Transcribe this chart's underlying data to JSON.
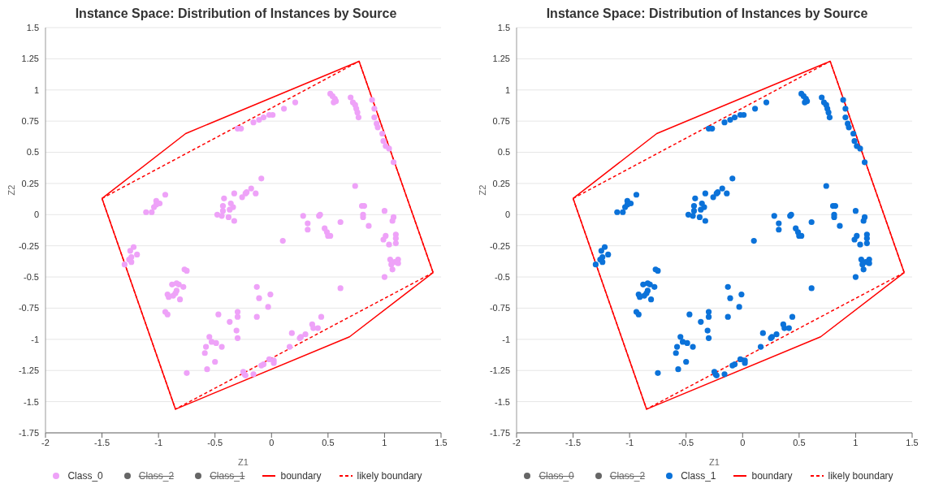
{
  "chart_data": [
    {
      "type": "scatter",
      "title": "Instance Space: Distribution of Instances by Source",
      "xlabel": "Z1",
      "ylabel": "Z2",
      "xlim": [
        -2,
        1.5
      ],
      "xticks": [
        -2,
        -1.5,
        -1,
        -0.5,
        0,
        0.5,
        1,
        1.5
      ],
      "ylim": [
        -1.75,
        1.5
      ],
      "yticks": [
        -1.75,
        -1.5,
        -1.25,
        -1,
        -0.75,
        -0.5,
        -0.25,
        0,
        0.25,
        0.5,
        0.75,
        1,
        1.25,
        1.5
      ],
      "grid": "y",
      "legend": "bottom",
      "marker": "circle",
      "series": [
        {
          "name": "Class_0",
          "color": "#eea2f8",
          "x": [
            -1.11,
            -1.06,
            -1.04,
            -1.02,
            -0.99,
            -0.94,
            -1.02,
            -0.42,
            -0.33,
            -0.26,
            -0.22,
            -0.36,
            -0.34,
            -0.43,
            -0.43,
            -0.37,
            -0.48,
            -0.44,
            -0.38,
            -0.33,
            -0.09,
            -0.18,
            -0.14,
            -0.23,
            -0.16,
            -0.11,
            -0.07,
            -0.02,
            0.01,
            0.11,
            0.21,
            -0.27,
            -0.3,
            0.52,
            0.54,
            0.56,
            0.57,
            0.55,
            0.7,
            0.72,
            0.74,
            0.75,
            0.76,
            0.77,
            0.89,
            0.91,
            0.91,
            0.93,
            0.94,
            0.98,
            0.99,
            1.01,
            1.04,
            1.08,
            0.74,
            0.8,
            0.82,
            0.81,
            0.81,
            0.86,
            0.61,
            0.28,
            0.32,
            0.32,
            0.42,
            0.43,
            0.47,
            0.49,
            0.5,
            0.52,
            0.1,
            1.0,
            1.08,
            1.07,
            1.1,
            1.1,
            1.01,
            0.99,
            1.04,
            1.1,
            1.05,
            1.09,
            1.12,
            1.06,
            1.07,
            1.12,
            1.0,
            -0.13,
            -0.11,
            -0.01,
            -0.03,
            -0.13,
            0.61,
            0.44,
            0.36,
            0.37,
            0.41,
            0.18,
            0.3,
            0.26,
            0.25,
            0.16,
            -0.02,
            0.02,
            0.02,
            -0.07,
            -0.09,
            -0.16,
            -0.24,
            -1.22,
            -1.25,
            -1.19,
            -1.24,
            -1.26,
            -1.24,
            -1.3,
            -0.77,
            -0.75,
            -0.88,
            -0.84,
            -0.82,
            -0.78,
            -0.84,
            -0.85,
            -0.92,
            -0.91,
            -0.87,
            -0.81,
            -0.94,
            -0.92,
            -0.47,
            -0.3,
            -0.3,
            -0.37,
            -0.31,
            -0.3,
            -0.55,
            -0.58,
            -0.53,
            -0.49,
            -0.44,
            -0.59,
            -0.5,
            -0.57,
            -0.75,
            -0.25,
            -0.23
          ],
          "values": [
            0.02,
            0.02,
            0.06,
            0.11,
            0.09,
            0.16,
            0.08,
            0.13,
            0.17,
            0.14,
            0.18,
            0.09,
            0.06,
            0.07,
            0.03,
            0.04,
            0.0,
            -0.01,
            -0.02,
            -0.05,
            0.29,
            0.21,
            0.17,
            0.17,
            0.74,
            0.76,
            0.78,
            0.8,
            0.8,
            0.85,
            0.9,
            0.69,
            0.69,
            0.97,
            0.95,
            0.93,
            0.91,
            0.9,
            0.94,
            0.9,
            0.88,
            0.85,
            0.82,
            0.78,
            0.92,
            0.85,
            0.78,
            0.73,
            0.7,
            0.65,
            0.59,
            0.55,
            0.53,
            0.42,
            0.23,
            0.07,
            0.07,
            0.0,
            -0.02,
            -0.09,
            -0.06,
            -0.01,
            -0.07,
            -0.12,
            -0.01,
            0.0,
            -0.11,
            -0.14,
            -0.17,
            -0.17,
            -0.21,
            0.03,
            -0.02,
            -0.05,
            -0.16,
            -0.19,
            -0.17,
            -0.2,
            -0.24,
            -0.23,
            -0.36,
            -0.38,
            -0.36,
            -0.4,
            -0.44,
            -0.39,
            -0.5,
            -0.58,
            -0.67,
            -0.64,
            -0.74,
            -0.82,
            -0.59,
            -0.82,
            -0.88,
            -0.91,
            -0.91,
            -0.95,
            -0.96,
            -0.98,
            -0.99,
            -1.06,
            -1.16,
            -1.17,
            -1.19,
            -1.2,
            -1.21,
            -1.28,
            -1.28,
            -0.26,
            -0.29,
            -0.32,
            -0.34,
            -0.36,
            -0.38,
            -0.4,
            -0.44,
            -0.45,
            -0.56,
            -0.55,
            -0.56,
            -0.58,
            -0.61,
            -0.63,
            -0.64,
            -0.66,
            -0.65,
            -0.68,
            -0.78,
            -0.8,
            -0.8,
            -0.78,
            -0.82,
            -0.86,
            -0.93,
            -0.99,
            -0.98,
            -1.06,
            -1.02,
            -1.03,
            -1.06,
            -1.11,
            -1.18,
            -1.24,
            -1.27,
            -1.26,
            -1.29
          ]
        },
        {
          "name": "Class_2",
          "color": "#666666"
        },
        {
          "name": "Class_1",
          "color": "#666666"
        },
        {
          "name": "boundary",
          "type": "line",
          "color": "#ff0000",
          "line_style": "solid",
          "marker": "none",
          "x": [
            -1.5,
            -0.76,
            0.775,
            1.43
          ],
          "values": [
            0.13,
            0.65,
            1.23,
            -0.465
          ]
        },
        {
          "type": "line",
          "color": "#ff0000",
          "line_style": "solid",
          "marker": "none",
          "x": [
            -1.5,
            -0.85,
            0.69,
            1.43
          ],
          "values": [
            0.13,
            -1.56,
            -0.98,
            -0.465
          ]
        },
        {
          "name": "likely boundary",
          "type": "line",
          "color": "#ff0000",
          "line_style": "dashed",
          "marker": "none",
          "x": [
            -1.5,
            0.775,
            1.43
          ],
          "values": [
            0.13,
            1.23,
            -0.465
          ]
        },
        {
          "type": "line",
          "color": "#ff0000",
          "line_style": "dashed",
          "marker": "none",
          "x": [
            -1.5,
            -0.85,
            1.43
          ],
          "values": [
            0.13,
            -1.56,
            -0.465
          ]
        }
      ]
    },
    {
      "type": "scatter",
      "title": "Instance Space: Distribution of Instances by Source",
      "xlabel": "Z1",
      "ylabel": "Z2",
      "xlim": [
        -2,
        1.5
      ],
      "xticks": [
        -2,
        -1.5,
        -1,
        -0.5,
        0,
        0.5,
        1,
        1.5
      ],
      "ylim": [
        -1.75,
        1.5
      ],
      "yticks": [
        -1.75,
        -1.5,
        -1.25,
        -1,
        -0.75,
        -0.5,
        -0.25,
        0,
        0.25,
        0.5,
        0.75,
        1,
        1.25,
        1.5
      ],
      "grid": "y",
      "legend": "bottom",
      "marker": "circle",
      "series": [
        {
          "name": "Class_0",
          "color": "#666666"
        },
        {
          "name": "Class_2",
          "color": "#666666"
        },
        {
          "name": "Class_1",
          "color": "#0b72d9",
          "x": [
            -1.11,
            -1.06,
            -1.04,
            -1.02,
            -0.99,
            -0.94,
            -1.02,
            -0.42,
            -0.33,
            -0.26,
            -0.22,
            -0.36,
            -0.34,
            -0.43,
            -0.43,
            -0.37,
            -0.48,
            -0.44,
            -0.38,
            -0.33,
            -0.09,
            -0.18,
            -0.14,
            -0.23,
            -0.16,
            -0.11,
            -0.07,
            -0.02,
            0.01,
            0.11,
            0.21,
            -0.27,
            -0.3,
            0.52,
            0.54,
            0.56,
            0.57,
            0.55,
            0.7,
            0.72,
            0.74,
            0.75,
            0.76,
            0.77,
            0.89,
            0.91,
            0.91,
            0.93,
            0.94,
            0.98,
            0.99,
            1.01,
            1.04,
            1.08,
            0.74,
            0.8,
            0.82,
            0.81,
            0.81,
            0.86,
            0.61,
            0.28,
            0.32,
            0.32,
            0.42,
            0.43,
            0.47,
            0.49,
            0.5,
            0.52,
            0.1,
            1.0,
            1.08,
            1.07,
            1.1,
            1.1,
            1.01,
            0.99,
            1.04,
            1.1,
            1.05,
            1.09,
            1.12,
            1.06,
            1.07,
            1.12,
            1.0,
            -0.13,
            -0.11,
            -0.01,
            -0.03,
            -0.13,
            0.61,
            0.44,
            0.36,
            0.37,
            0.41,
            0.18,
            0.3,
            0.26,
            0.25,
            0.16,
            -0.02,
            0.02,
            0.02,
            -0.07,
            -0.09,
            -0.16,
            -0.24,
            -1.22,
            -1.25,
            -1.19,
            -1.24,
            -1.26,
            -1.24,
            -1.3,
            -0.77,
            -0.75,
            -0.88,
            -0.84,
            -0.82,
            -0.78,
            -0.84,
            -0.85,
            -0.92,
            -0.91,
            -0.87,
            -0.81,
            -0.94,
            -0.92,
            -0.47,
            -0.3,
            -0.3,
            -0.37,
            -0.31,
            -0.3,
            -0.55,
            -0.58,
            -0.53,
            -0.49,
            -0.44,
            -0.59,
            -0.5,
            -0.57,
            -0.75,
            -0.25,
            -0.23
          ],
          "values": [
            0.02,
            0.02,
            0.06,
            0.11,
            0.09,
            0.16,
            0.08,
            0.13,
            0.17,
            0.14,
            0.18,
            0.09,
            0.06,
            0.07,
            0.03,
            0.04,
            0.0,
            -0.01,
            -0.02,
            -0.05,
            0.29,
            0.21,
            0.17,
            0.17,
            0.74,
            0.76,
            0.78,
            0.8,
            0.8,
            0.85,
            0.9,
            0.69,
            0.69,
            0.97,
            0.95,
            0.93,
            0.91,
            0.9,
            0.94,
            0.9,
            0.88,
            0.85,
            0.82,
            0.78,
            0.92,
            0.85,
            0.78,
            0.73,
            0.7,
            0.65,
            0.59,
            0.55,
            0.53,
            0.42,
            0.23,
            0.07,
            0.07,
            0.0,
            -0.02,
            -0.09,
            -0.06,
            -0.01,
            -0.07,
            -0.12,
            -0.01,
            0.0,
            -0.11,
            -0.14,
            -0.17,
            -0.17,
            -0.21,
            0.03,
            -0.02,
            -0.05,
            -0.16,
            -0.19,
            -0.17,
            -0.2,
            -0.24,
            -0.23,
            -0.36,
            -0.38,
            -0.36,
            -0.4,
            -0.44,
            -0.39,
            -0.5,
            -0.58,
            -0.67,
            -0.64,
            -0.74,
            -0.82,
            -0.59,
            -0.82,
            -0.88,
            -0.91,
            -0.91,
            -0.95,
            -0.96,
            -0.98,
            -0.99,
            -1.06,
            -1.16,
            -1.17,
            -1.19,
            -1.2,
            -1.21,
            -1.28,
            -1.28,
            -0.26,
            -0.29,
            -0.32,
            -0.34,
            -0.36,
            -0.38,
            -0.4,
            -0.44,
            -0.45,
            -0.56,
            -0.55,
            -0.56,
            -0.58,
            -0.61,
            -0.63,
            -0.64,
            -0.66,
            -0.65,
            -0.68,
            -0.78,
            -0.8,
            -0.8,
            -0.78,
            -0.82,
            -0.86,
            -0.93,
            -0.99,
            -0.98,
            -1.06,
            -1.02,
            -1.03,
            -1.06,
            -1.11,
            -1.18,
            -1.24,
            -1.27,
            -1.26,
            -1.29
          ]
        },
        {
          "name": "boundary",
          "type": "line",
          "color": "#ff0000",
          "line_style": "solid",
          "marker": "none",
          "x": [
            -1.5,
            -0.76,
            0.775,
            1.43
          ],
          "values": [
            0.13,
            0.65,
            1.23,
            -0.465
          ]
        },
        {
          "type": "line",
          "color": "#ff0000",
          "line_style": "solid",
          "marker": "none",
          "x": [
            -1.5,
            -0.85,
            0.69,
            1.43
          ],
          "values": [
            0.13,
            -1.56,
            -0.98,
            -0.465
          ]
        },
        {
          "name": "likely boundary",
          "type": "line",
          "color": "#ff0000",
          "line_style": "dashed",
          "marker": "none",
          "x": [
            -1.5,
            0.775,
            1.43
          ],
          "values": [
            0.13,
            1.23,
            -0.465
          ]
        },
        {
          "type": "line",
          "color": "#ff0000",
          "line_style": "dashed",
          "marker": "none",
          "x": [
            -1.5,
            -0.85,
            1.43
          ],
          "values": [
            0.13,
            -1.56,
            -0.465
          ]
        }
      ]
    }
  ]
}
